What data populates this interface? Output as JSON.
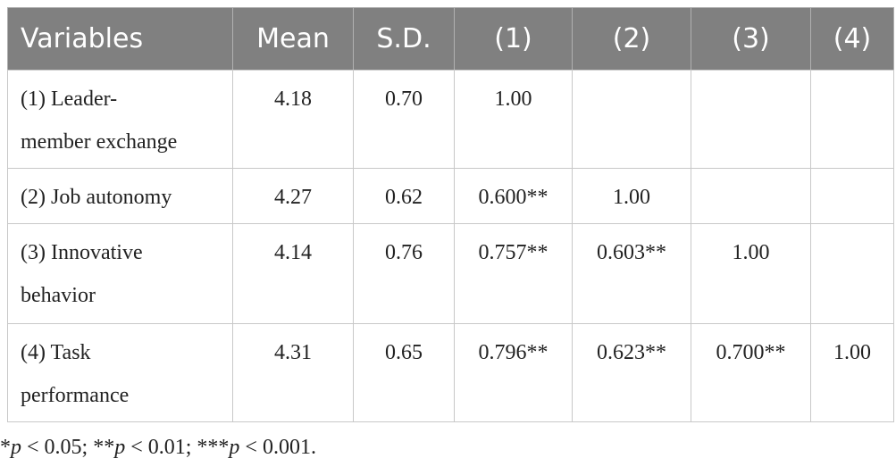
{
  "table": {
    "header": [
      "Variables",
      "Mean",
      "S.D.",
      "(1)",
      "(2)",
      "(3)",
      "(4)"
    ],
    "rows": [
      [
        [
          "(1) Leader-",
          "member exchange"
        ],
        "4.18",
        "0.70",
        "1.00",
        "",
        "",
        ""
      ],
      [
        [
          "(2) Job autonomy"
        ],
        "4.27",
        "0.62",
        "0.600**",
        "1.00",
        "",
        ""
      ],
      [
        [
          "(3) Innovative",
          "behavior"
        ],
        "4.14",
        "0.76",
        "0.757**",
        "0.603**",
        "1.00",
        ""
      ],
      [
        [
          "(4) Task",
          "performance"
        ],
        "4.31",
        "0.65",
        "0.796**",
        "0.623**",
        "0.700**",
        "1.00"
      ]
    ]
  },
  "footnote": [
    "*",
    "p",
    " < 0.05; **",
    "p",
    " < 0.01; ***",
    "p",
    " < 0.001."
  ]
}
